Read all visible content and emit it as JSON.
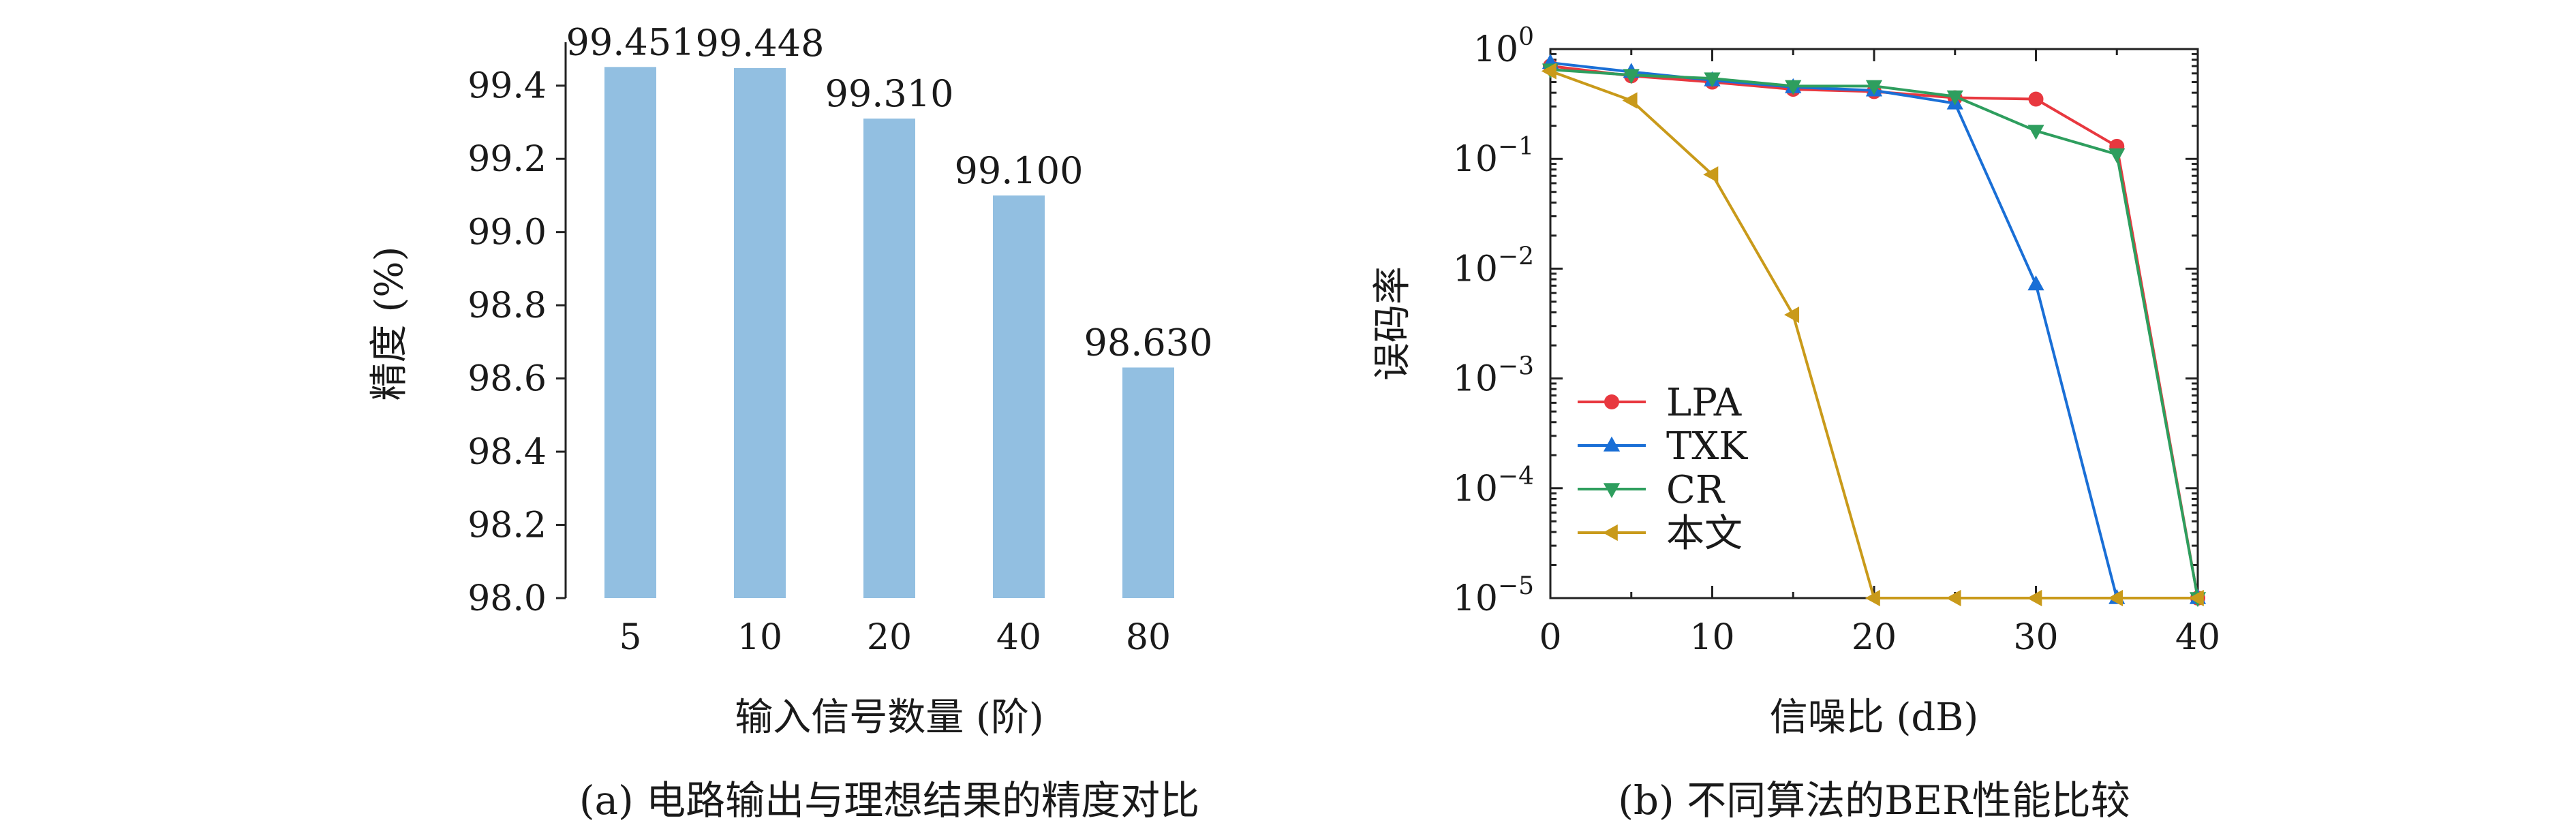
{
  "chart_data": [
    {
      "type": "bar",
      "categories": [
        "5",
        "10",
        "20",
        "40",
        "80"
      ],
      "values": [
        99.451,
        99.448,
        99.31,
        99.1,
        98.63
      ],
      "data_labels": [
        "99.451",
        "99.448",
        "99.310",
        "99.100",
        "98.630"
      ],
      "xlabel": "输入信号数量 (阶)",
      "ylabel": "精度 (%)",
      "ylim": [
        98.0,
        99.5
      ],
      "yticks": [
        "98.0",
        "98.2",
        "98.4",
        "98.6",
        "98.8",
        "99.0",
        "99.2",
        "99.4"
      ],
      "caption": "(a) 电路输出与理想结果的精度对比",
      "color": "#92bfe1",
      "grid": false
    },
    {
      "type": "line",
      "xlabel": "信噪比 (dB)",
      "ylabel": "误码率",
      "xlim": [
        0,
        40
      ],
      "ylim": [
        1e-05,
        1
      ],
      "yscale": "log",
      "xticks": [
        "0",
        "10",
        "20",
        "30",
        "40"
      ],
      "yticks": [
        {
          "base": "10",
          "exp": "0"
        },
        {
          "base": "10",
          "exp": "−1"
        },
        {
          "base": "10",
          "exp": "−2"
        },
        {
          "base": "10",
          "exp": "−3"
        },
        {
          "base": "10",
          "exp": "−4"
        },
        {
          "base": "10",
          "exp": "−5"
        }
      ],
      "caption": "(b) 不同算法的BER性能比较",
      "legend_position": "lower-left",
      "grid": false,
      "x": [
        0,
        5,
        10,
        15,
        20,
        25,
        30,
        35,
        40
      ],
      "series": [
        {
          "name": "LPA",
          "color": "#e8383f",
          "marker": "circle",
          "values": [
            0.7,
            0.57,
            0.5,
            0.43,
            0.41,
            0.36,
            0.35,
            0.13,
            1e-05
          ]
        },
        {
          "name": "TXK",
          "color": "#1a6fd6",
          "marker": "triangle-up",
          "values": [
            0.75,
            0.62,
            0.52,
            0.45,
            0.42,
            0.32,
            0.0072,
            1e-05,
            1e-05
          ]
        },
        {
          "name": "CR",
          "color": "#2e9e5e",
          "marker": "triangle-down",
          "values": [
            0.65,
            0.58,
            0.54,
            0.46,
            0.46,
            0.37,
            0.18,
            0.11,
            1e-05
          ]
        },
        {
          "name": "本文",
          "color": "#c99a1a",
          "marker": "triangle-left",
          "values": [
            0.63,
            0.34,
            0.072,
            0.0038,
            1e-05,
            1e-05,
            1e-05,
            1e-05,
            1e-05
          ]
        }
      ]
    }
  ]
}
